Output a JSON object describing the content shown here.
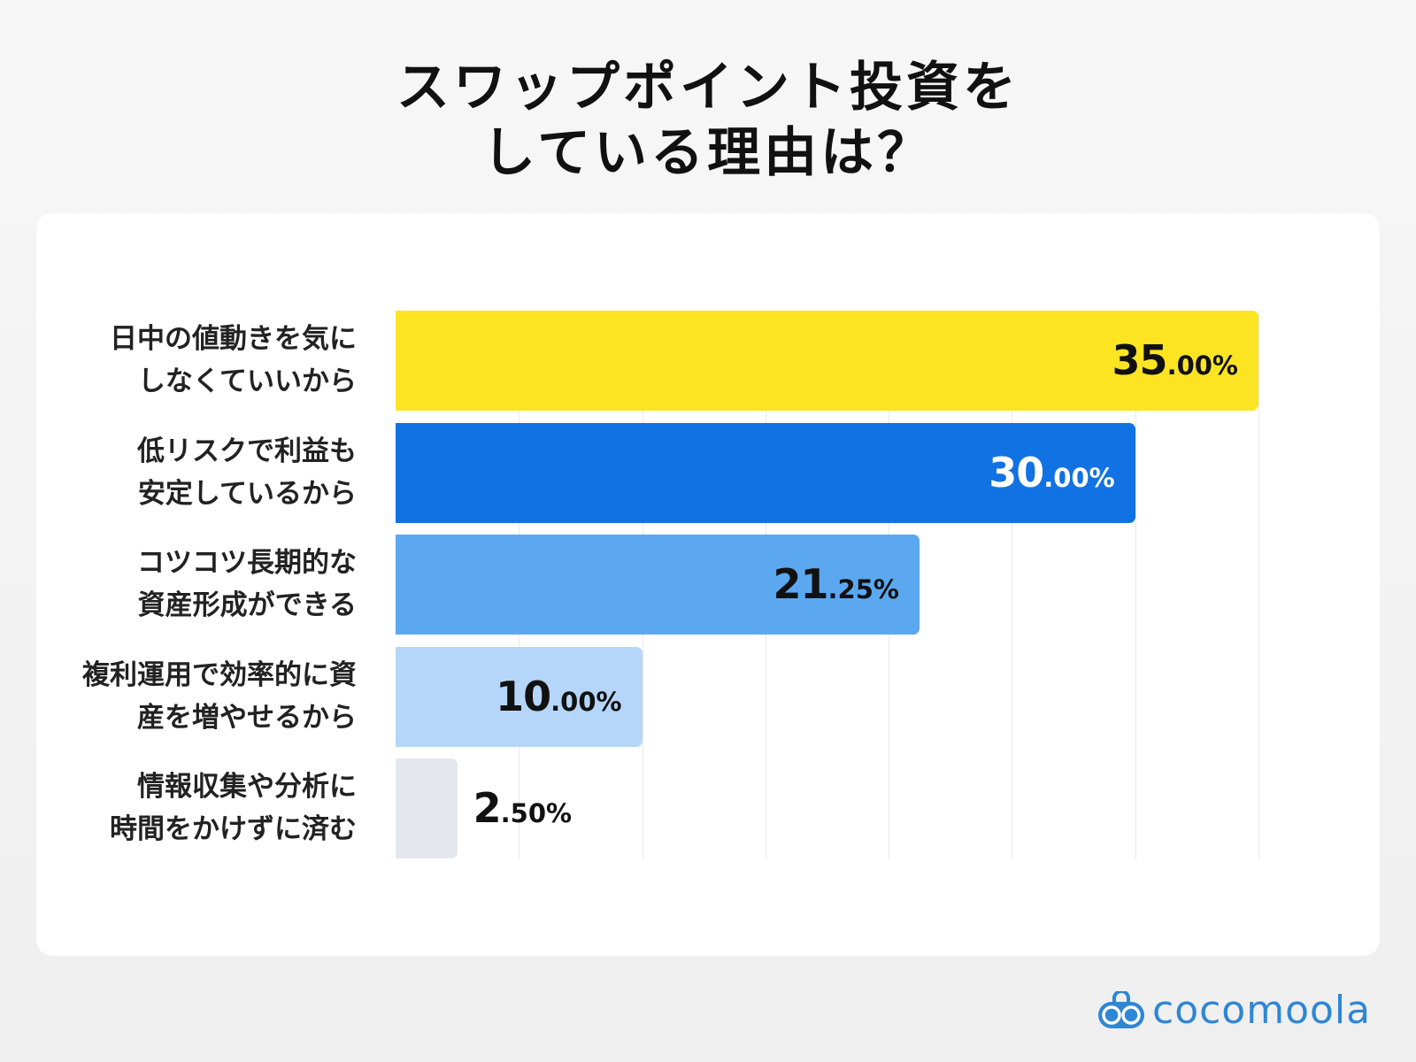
{
  "chart_data": {
    "type": "bar",
    "orientation": "horizontal",
    "title_lines": [
      "スワップポイント投資を",
      "している理由は？"
    ],
    "categories": [
      [
        "日中の値動きを気に",
        "しなくていいから"
      ],
      [
        "低リスクで利益も",
        "安定しているから"
      ],
      [
        "コツコツ長期的な",
        "資産形成ができる"
      ],
      [
        "複利運用で効率的に資",
        "産を増やせるから"
      ],
      [
        "情報収集や分析に",
        "時間をかけずに済む"
      ]
    ],
    "values": [
      35.0,
      30.0,
      21.25,
      10.0,
      2.5
    ],
    "value_labels": [
      [
        "35",
        ".00%"
      ],
      [
        "30",
        ".00%"
      ],
      [
        "21",
        ".25%"
      ],
      [
        "10",
        ".00%"
      ],
      [
        "2",
        ".50%"
      ]
    ],
    "colors": [
      "#FDE422",
      "#1172E3",
      "#5BA8F0",
      "#B5D6F8",
      "#E4E8EE"
    ],
    "label_colors": [
      "#111111",
      "#ffffff",
      "#111111",
      "#111111",
      "#111111"
    ],
    "xlim": [
      0,
      35
    ],
    "grid_step": 5,
    "grid": true
  },
  "logo": {
    "text": "cocomoola",
    "icon": "binoculars-icon",
    "color": "#2E86D6"
  }
}
